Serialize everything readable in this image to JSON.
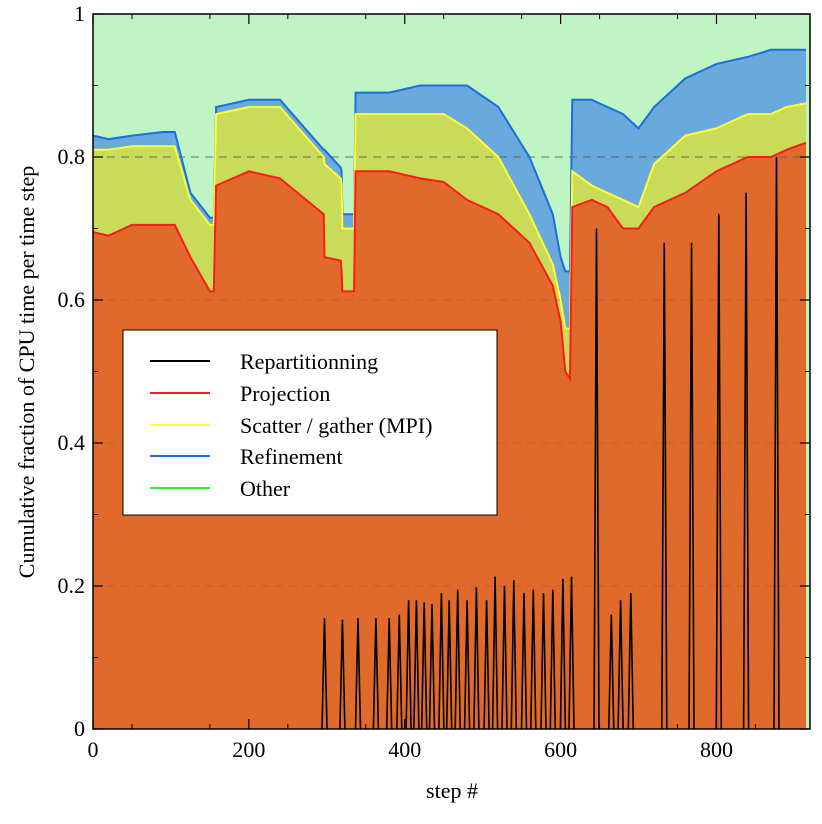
{
  "chart_data": {
    "type": "area",
    "title": "",
    "xlabel": "step #",
    "ylabel": "Cumulative fraction of CPU time per time step",
    "xlim": [
      0,
      920
    ],
    "ylim": [
      0,
      1
    ],
    "x_ticks": [
      0,
      200,
      400,
      600,
      800
    ],
    "y_ticks": [
      0,
      0.2,
      0.4,
      0.6,
      0.8,
      1
    ],
    "x_tick_labels": [
      "0",
      "200",
      "400",
      "600",
      "800"
    ],
    "y_tick_labels": [
      "0",
      "0.2",
      "0.4",
      "0.6",
      "0.8",
      "1"
    ],
    "reference_line": 0.8,
    "grid_y": [
      0.2,
      0.4,
      0.6,
      0.8
    ],
    "legend_position": "middle-left",
    "colors": {
      "repartitioning_line": "#000000",
      "projection_line": "#ff1a1a",
      "projection_fill": "#e06a2c",
      "scatter_line": "#ffff33",
      "scatter_fill": "#c8dc5a",
      "refinement_line": "#1a6fe0",
      "refinement_fill": "#69a9dc",
      "other_line": "#33e633",
      "other_fill": "#bff5c4"
    },
    "series": [
      {
        "name": "Repartitionning",
        "type": "spikes",
        "x": [
          297,
          320,
          340,
          363,
          380,
          393,
          405,
          415,
          425,
          435,
          447,
          457,
          468,
          480,
          492,
          505,
          516,
          528,
          540,
          553,
          565,
          578,
          590,
          603,
          614,
          646,
          665,
          677,
          690,
          733,
          768,
          803,
          838,
          877
        ],
        "values": [
          0.155,
          0.153,
          0.155,
          0.155,
          0.155,
          0.16,
          0.18,
          0.18,
          0.177,
          0.175,
          0.19,
          0.18,
          0.195,
          0.18,
          0.198,
          0.18,
          0.213,
          0.2,
          0.208,
          0.19,
          0.195,
          0.19,
          0.195,
          0.21,
          0.213,
          0.7,
          0.16,
          0.18,
          0.19,
          0.68,
          0.68,
          0.72,
          0.75,
          0.8
        ]
      },
      {
        "name": "Projection",
        "x": [
          0,
          20,
          50,
          90,
          105,
          125,
          150,
          155,
          158,
          200,
          240,
          296,
          297,
          318,
          319,
          320,
          332,
          335,
          337,
          380,
          420,
          450,
          480,
          520,
          560,
          590,
          600,
          606,
          612,
          615,
          640,
          660,
          680,
          700,
          720,
          760,
          800,
          840,
          870,
          890,
          915
        ],
        "values": [
          0.695,
          0.69,
          0.705,
          0.705,
          0.705,
          0.66,
          0.612,
          0.612,
          0.76,
          0.78,
          0.77,
          0.72,
          0.66,
          0.655,
          0.64,
          0.612,
          0.612,
          0.612,
          0.78,
          0.78,
          0.77,
          0.765,
          0.74,
          0.72,
          0.68,
          0.62,
          0.57,
          0.5,
          0.49,
          0.73,
          0.74,
          0.73,
          0.7,
          0.7,
          0.73,
          0.75,
          0.78,
          0.8,
          0.8,
          0.81,
          0.82
        ]
      },
      {
        "name": "Scatter / gather (MPI)",
        "x": [
          0,
          20,
          50,
          90,
          105,
          125,
          150,
          155,
          158,
          200,
          240,
          296,
          297,
          318,
          319,
          320,
          332,
          335,
          337,
          380,
          420,
          450,
          480,
          520,
          560,
          590,
          600,
          606,
          612,
          615,
          640,
          660,
          680,
          700,
          720,
          760,
          800,
          840,
          870,
          890,
          915
        ],
        "values": [
          0.81,
          0.81,
          0.815,
          0.815,
          0.815,
          0.74,
          0.705,
          0.705,
          0.86,
          0.87,
          0.87,
          0.8,
          0.79,
          0.77,
          0.76,
          0.7,
          0.7,
          0.7,
          0.86,
          0.86,
          0.86,
          0.86,
          0.84,
          0.8,
          0.72,
          0.65,
          0.6,
          0.56,
          0.56,
          0.78,
          0.76,
          0.75,
          0.74,
          0.73,
          0.79,
          0.83,
          0.84,
          0.86,
          0.86,
          0.87,
          0.875
        ]
      },
      {
        "name": "Refinement",
        "x": [
          0,
          20,
          50,
          90,
          105,
          125,
          150,
          155,
          158,
          200,
          240,
          296,
          297,
          318,
          319,
          320,
          332,
          335,
          337,
          380,
          420,
          450,
          480,
          520,
          560,
          590,
          600,
          606,
          612,
          615,
          640,
          660,
          680,
          700,
          720,
          760,
          800,
          840,
          870,
          890,
          915
        ],
        "values": [
          0.83,
          0.825,
          0.83,
          0.835,
          0.835,
          0.75,
          0.715,
          0.715,
          0.87,
          0.88,
          0.88,
          0.81,
          0.81,
          0.785,
          0.78,
          0.72,
          0.72,
          0.72,
          0.89,
          0.89,
          0.9,
          0.9,
          0.9,
          0.87,
          0.8,
          0.72,
          0.66,
          0.64,
          0.64,
          0.88,
          0.88,
          0.87,
          0.86,
          0.84,
          0.87,
          0.91,
          0.93,
          0.94,
          0.95,
          0.95,
          0.95
        ]
      },
      {
        "name": "Other",
        "x": [
          0,
          920
        ],
        "values": [
          1,
          1
        ]
      }
    ]
  }
}
